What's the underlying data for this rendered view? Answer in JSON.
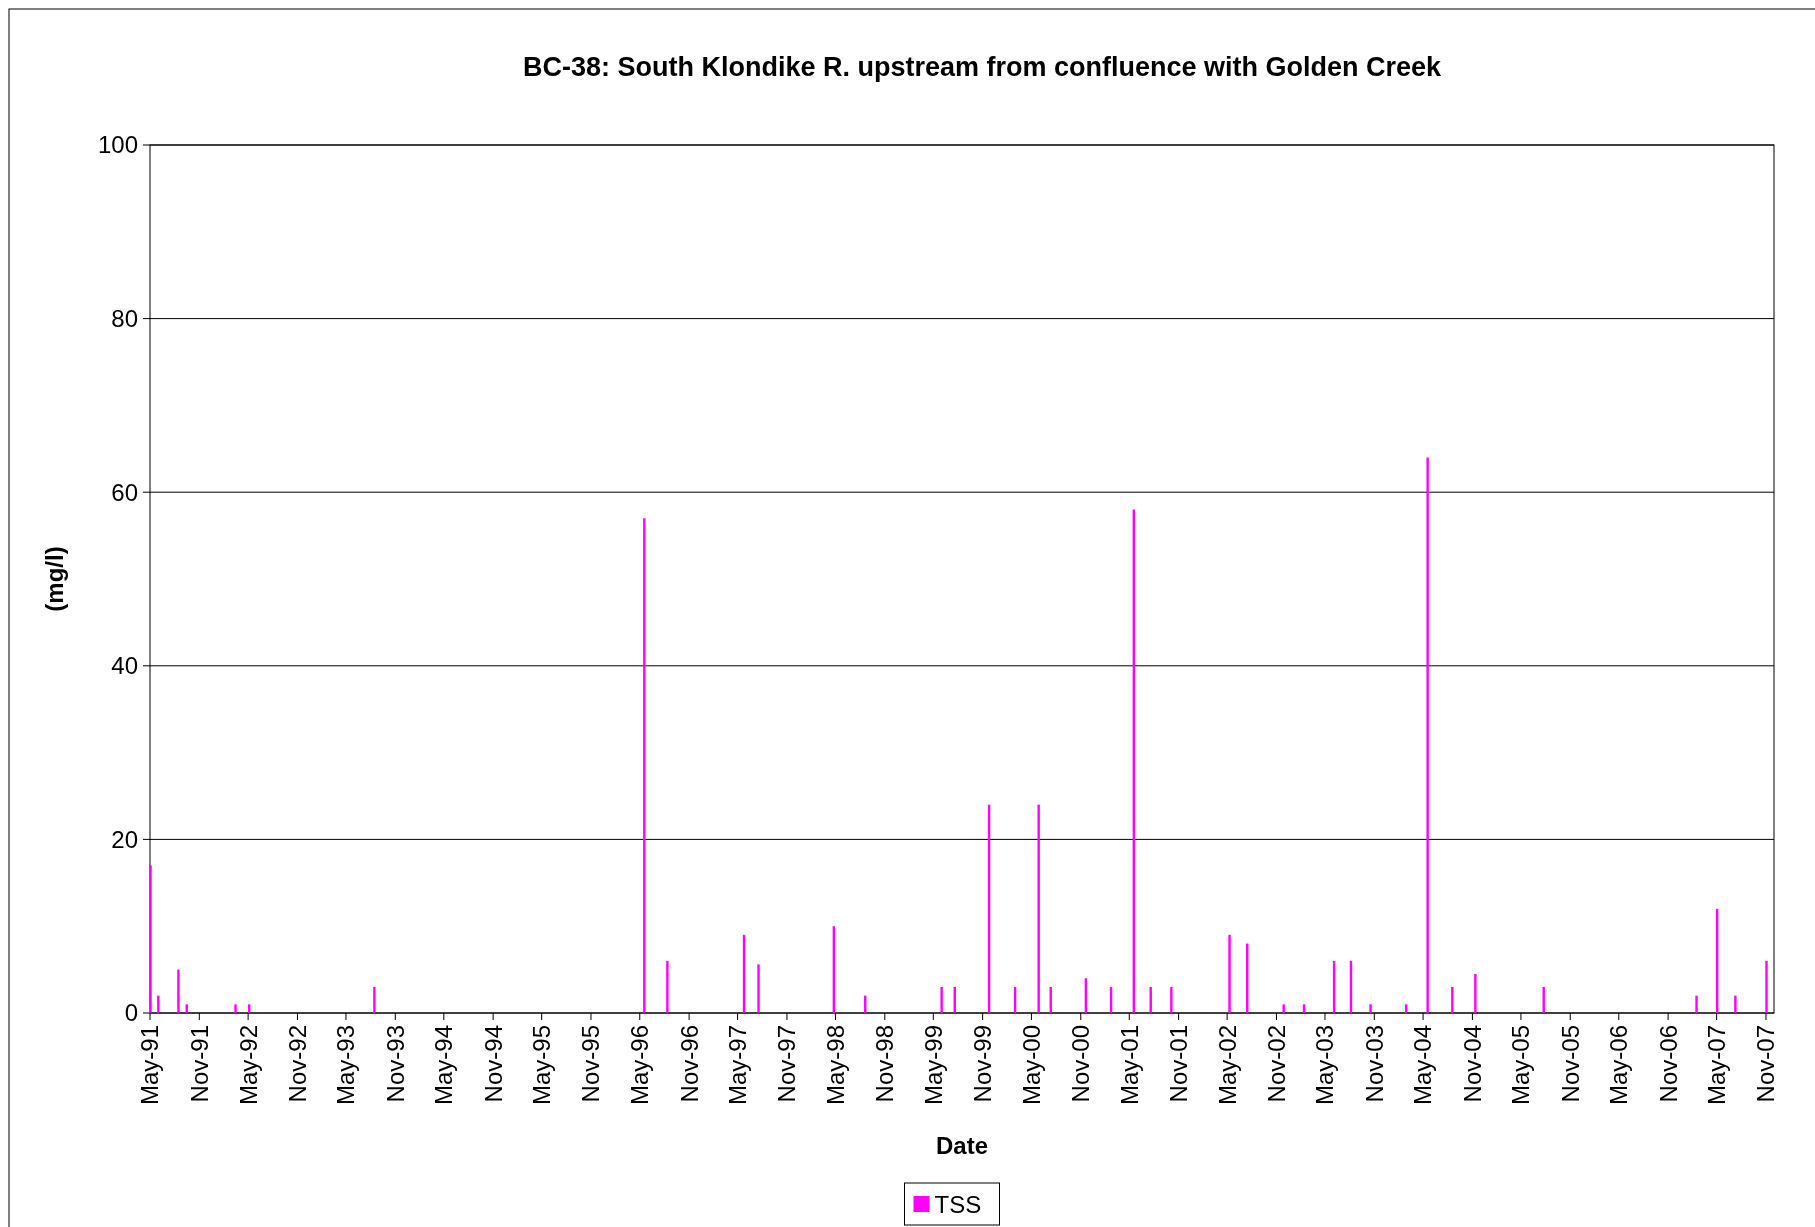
{
  "chart_data": {
    "type": "bar",
    "title": "BC-38: South Klondike R. upstream from confluence with Golden Creek",
    "xlabel": "Date",
    "ylabel": "(mg/l)",
    "x": [
      "1991-05-03",
      "1991-06-01",
      "1991-08-15",
      "1991-09-15",
      "1992-03-15",
      "1992-05-05",
      "1993-08-15",
      "1996-05-18",
      "1996-08-12",
      "1997-05-25",
      "1997-07-18",
      "1998-04-25",
      "1998-08-20",
      "1999-06-01",
      "1999-07-20",
      "1999-11-25",
      "2000-03-01",
      "2000-05-28",
      "2000-07-12",
      "2000-11-20",
      "2001-02-22",
      "2001-05-18",
      "2001-07-20",
      "2001-10-05",
      "2002-05-10",
      "2002-07-15",
      "2002-11-28",
      "2003-02-12",
      "2003-06-04",
      "2003-08-06",
      "2003-10-18",
      "2004-02-28",
      "2004-05-18",
      "2004-08-18",
      "2004-11-12",
      "2005-07-25",
      "2007-02-15",
      "2007-05-03",
      "2007-07-10",
      "2007-11-03"
    ],
    "series": [
      {
        "name": "TSS",
        "color": "#ff00ff",
        "values": [
          17,
          2,
          5,
          1,
          1,
          1,
          3,
          57,
          6,
          9,
          5.6,
          10,
          2,
          3,
          3,
          24,
          3,
          24,
          3,
          4,
          3,
          58,
          3,
          3,
          9,
          8,
          1,
          1,
          6,
          6,
          1,
          1,
          64,
          3,
          4.5,
          3,
          2,
          12,
          2,
          6
        ]
      }
    ],
    "xlim": [
      "1991-05-01",
      "2007-12-01"
    ],
    "xticks": [
      {
        "value": "1991-05-01",
        "label": "May-91"
      },
      {
        "value": "1991-11-01",
        "label": "Nov-91"
      },
      {
        "value": "1992-05-01",
        "label": "May-92"
      },
      {
        "value": "1992-11-01",
        "label": "Nov-92"
      },
      {
        "value": "1993-05-01",
        "label": "May-93"
      },
      {
        "value": "1993-11-01",
        "label": "Nov-93"
      },
      {
        "value": "1994-05-01",
        "label": "May-94"
      },
      {
        "value": "1994-11-01",
        "label": "Nov-94"
      },
      {
        "value": "1995-05-01",
        "label": "May-95"
      },
      {
        "value": "1995-11-01",
        "label": "Nov-95"
      },
      {
        "value": "1996-05-01",
        "label": "May-96"
      },
      {
        "value": "1996-11-01",
        "label": "Nov-96"
      },
      {
        "value": "1997-05-01",
        "label": "May-97"
      },
      {
        "value": "1997-11-01",
        "label": "Nov-97"
      },
      {
        "value": "1998-05-01",
        "label": "May-98"
      },
      {
        "value": "1998-11-01",
        "label": "Nov-98"
      },
      {
        "value": "1999-05-01",
        "label": "May-99"
      },
      {
        "value": "1999-11-01",
        "label": "Nov-99"
      },
      {
        "value": "2000-05-01",
        "label": "May-00"
      },
      {
        "value": "2000-11-01",
        "label": "Nov-00"
      },
      {
        "value": "2001-05-01",
        "label": "May-01"
      },
      {
        "value": "2001-11-01",
        "label": "Nov-01"
      },
      {
        "value": "2002-05-01",
        "label": "May-02"
      },
      {
        "value": "2002-11-01",
        "label": "Nov-02"
      },
      {
        "value": "2003-05-01",
        "label": "May-03"
      },
      {
        "value": "2003-11-01",
        "label": "Nov-03"
      },
      {
        "value": "2004-05-01",
        "label": "May-04"
      },
      {
        "value": "2004-11-01",
        "label": "Nov-04"
      },
      {
        "value": "2005-05-01",
        "label": "May-05"
      },
      {
        "value": "2005-11-01",
        "label": "Nov-05"
      },
      {
        "value": "2006-05-01",
        "label": "May-06"
      },
      {
        "value": "2006-11-01",
        "label": "Nov-06"
      },
      {
        "value": "2007-05-01",
        "label": "May-07"
      },
      {
        "value": "2007-11-01",
        "label": "Nov-07"
      }
    ],
    "ylim": [
      0,
      100
    ],
    "yticks": [
      0,
      20,
      40,
      60,
      80,
      100
    ],
    "grid": "y",
    "legend": "bottom"
  }
}
